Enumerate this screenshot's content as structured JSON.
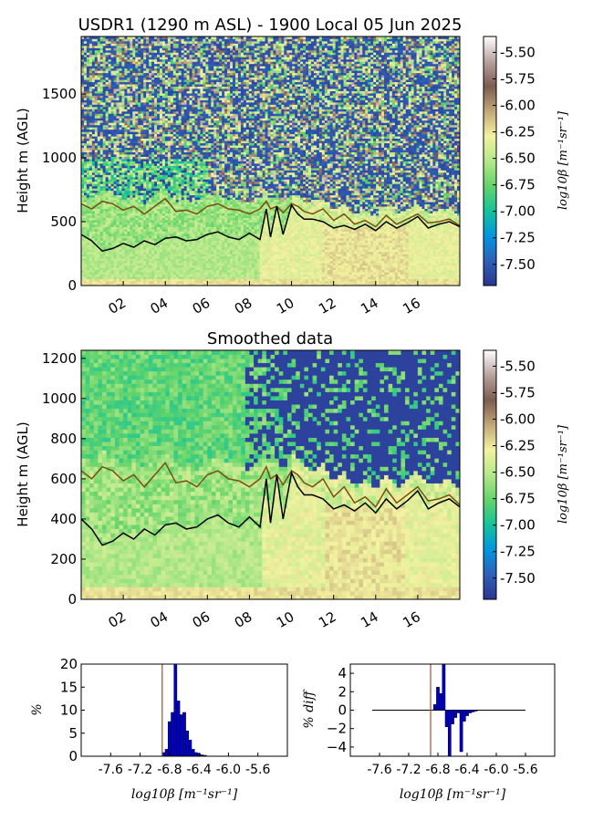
{
  "figure": {
    "title": "USDR1 (1290 m ASL) - 1900 Local 05 Jun 2025",
    "panel2_title": "Smoothed data"
  },
  "colormap": {
    "stops": [
      "#2b3590",
      "#2d61b8",
      "#0096e0",
      "#15c39a",
      "#63d46b",
      "#b5e88a",
      "#f3f2a0",
      "#c2a878",
      "#7b5c50",
      "#b8a39f",
      "#ffffff"
    ],
    "pbl_brown": "#7a4e10",
    "pbl_black": "#000000",
    "hist_bar": "#0000cc",
    "ref_line": "#a0522d"
  },
  "chart_data": [
    {
      "type": "heatmap",
      "title": "USDR1 (1290 m ASL) - 1900 Local 05 Jun 2025",
      "ylabel": "Height m (AGL)",
      "ylim": [
        0,
        1950
      ],
      "yticks": [
        "0",
        "500",
        "1000",
        "1500"
      ],
      "xlim": [
        0,
        18
      ],
      "xticks": [
        "02",
        "04",
        "06",
        "08",
        "10",
        "12",
        "14",
        "16"
      ],
      "colorbar": {
        "label": "log10β [m⁻¹sr⁻¹]",
        "range": [
          -7.7,
          -5.35
        ],
        "ticks": [
          "-5.50",
          "-5.75",
          "-6.00",
          "-6.25",
          "-6.50",
          "-6.75",
          "-7.00",
          "-7.25",
          "-7.50"
        ]
      },
      "series": [
        {
          "name": "",
          "x": [
            0.0,
            0.5,
            1.0,
            1.5,
            2.0,
            2.5,
            3.0,
            3.5,
            4.0,
            4.5,
            5.0,
            5.5,
            6.0,
            6.5,
            7.0,
            7.5,
            8.0,
            8.5,
            8.8,
            9.0,
            9.3,
            9.6,
            10.0,
            10.3,
            10.6,
            11.0,
            11.5,
            12.0,
            12.5,
            13.0,
            13.5,
            14.0,
            14.5,
            15.0,
            15.5,
            16.0,
            16.5,
            17.0,
            17.5,
            18.0
          ],
          "y": [
            640,
            600,
            660,
            640,
            590,
            620,
            560,
            620,
            680,
            580,
            590,
            560,
            620,
            640,
            600,
            590,
            560,
            600,
            660,
            600,
            620,
            570,
            640,
            620,
            580,
            560,
            600,
            510,
            560,
            480,
            510,
            460,
            550,
            480,
            520,
            560,
            490,
            500,
            520,
            470
          ]
        },
        {
          "name": "",
          "x": [
            0.0,
            0.5,
            1.0,
            1.5,
            2.0,
            2.5,
            3.0,
            3.5,
            4.0,
            4.5,
            5.0,
            5.5,
            6.0,
            6.5,
            7.0,
            7.5,
            8.0,
            8.5,
            8.8,
            9.0,
            9.3,
            9.6,
            10.0,
            10.3,
            10.6,
            11.0,
            11.5,
            12.0,
            12.5,
            13.0,
            13.5,
            14.0,
            14.5,
            15.0,
            15.5,
            16.0,
            16.5,
            17.0,
            17.5,
            18.0
          ],
          "y": [
            400,
            350,
            270,
            290,
            330,
            300,
            350,
            320,
            370,
            380,
            350,
            360,
            400,
            420,
            380,
            360,
            410,
            360,
            600,
            380,
            620,
            400,
            630,
            560,
            520,
            520,
            500,
            450,
            470,
            440,
            480,
            430,
            500,
            450,
            490,
            540,
            450,
            480,
            500,
            460
          ]
        }
      ]
    },
    {
      "type": "heatmap",
      "title": "Smoothed data",
      "ylabel": "Height m (AGL)",
      "ylim": [
        0,
        1240
      ],
      "yticks": [
        "0",
        "200",
        "400",
        "600",
        "800",
        "1000",
        "1200"
      ],
      "xlim": [
        0,
        18
      ],
      "xticks": [
        "02",
        "04",
        "06",
        "08",
        "10",
        "12",
        "14",
        "16"
      ],
      "colorbar": {
        "label": "log10β [m⁻¹sr⁻¹]",
        "range": [
          -7.7,
          -5.35
        ],
        "ticks": [
          "-5.50",
          "-5.75",
          "-6.00",
          "-6.25",
          "-6.50",
          "-6.75",
          "-7.00",
          "-7.25",
          "-7.50"
        ]
      },
      "series": [
        {
          "name": "",
          "x": [
            0.0,
            0.5,
            1.0,
            1.5,
            2.0,
            2.5,
            3.0,
            3.5,
            4.0,
            4.5,
            5.0,
            5.5,
            6.0,
            6.5,
            7.0,
            7.5,
            8.0,
            8.5,
            8.8,
            9.0,
            9.3,
            9.6,
            10.0,
            10.3,
            10.6,
            11.0,
            11.5,
            12.0,
            12.5,
            13.0,
            13.5,
            14.0,
            14.5,
            15.0,
            15.5,
            16.0,
            16.5,
            17.0,
            17.5,
            18.0
          ],
          "y": [
            640,
            600,
            660,
            640,
            590,
            620,
            560,
            620,
            680,
            580,
            590,
            560,
            620,
            640,
            600,
            590,
            560,
            600,
            660,
            600,
            620,
            570,
            640,
            620,
            580,
            560,
            600,
            510,
            560,
            480,
            510,
            460,
            550,
            480,
            520,
            560,
            490,
            500,
            520,
            470
          ]
        },
        {
          "name": "",
          "x": [
            0.0,
            0.5,
            1.0,
            1.5,
            2.0,
            2.5,
            3.0,
            3.5,
            4.0,
            4.5,
            5.0,
            5.5,
            6.0,
            6.5,
            7.0,
            7.5,
            8.0,
            8.5,
            8.8,
            9.0,
            9.3,
            9.6,
            10.0,
            10.3,
            10.6,
            11.0,
            11.5,
            12.0,
            12.5,
            13.0,
            13.5,
            14.0,
            14.5,
            15.0,
            15.5,
            16.0,
            16.5,
            17.0,
            17.5,
            18.0
          ],
          "y": [
            400,
            350,
            270,
            290,
            330,
            300,
            350,
            320,
            370,
            380,
            350,
            360,
            400,
            420,
            380,
            360,
            410,
            360,
            600,
            380,
            620,
            400,
            630,
            560,
            520,
            520,
            500,
            450,
            470,
            440,
            480,
            430,
            500,
            450,
            490,
            540,
            450,
            480,
            500,
            460
          ]
        }
      ]
    },
    {
      "type": "bar",
      "xlabel": "log10β [m⁻¹sr⁻¹]",
      "ylabel": "%",
      "ylim": [
        0,
        20
      ],
      "yticks": [
        "0",
        "5",
        "10",
        "15",
        "20"
      ],
      "xlim": [
        -8.0,
        -5.2
      ],
      "xticks": [
        "-7.6",
        "-7.2",
        "-6.8",
        "-6.4",
        "-6.0",
        "-5.6"
      ],
      "ref_line_x": -6.9,
      "bin_width": 0.04,
      "x": [
        -6.88,
        -6.84,
        -6.8,
        -6.76,
        -6.72,
        -6.68,
        -6.64,
        -6.6,
        -6.56,
        -6.52,
        -6.48,
        -6.44,
        -6.4,
        -6.36,
        -6.32
      ],
      "values": [
        0.8,
        1.5,
        7.5,
        9.5,
        20.0,
        12.0,
        9.0,
        9.5,
        5.5,
        3.5,
        1.5,
        0.8,
        0.6,
        0.3,
        0.2
      ]
    },
    {
      "type": "bar",
      "xlabel": "log10β [m⁻¹sr⁻¹]",
      "ylabel": "% diff",
      "ylim": [
        -5,
        5
      ],
      "yticks": [
        "−4",
        "−2",
        "0",
        "2",
        "4"
      ],
      "xlim": [
        -8.0,
        -5.2
      ],
      "xticks": [
        "-7.6",
        "-7.2",
        "-6.8",
        "-6.4",
        "-6.0",
        "-5.6"
      ],
      "ref_line_x": -6.9,
      "bin_width": 0.04,
      "zero_line_range": [
        -7.7,
        -5.6
      ],
      "x": [
        -6.84,
        -6.8,
        -6.76,
        -6.72,
        -6.68,
        -6.64,
        -6.6,
        -6.56,
        -6.52,
        -6.48,
        -6.44,
        -6.4,
        -6.36,
        -6.32,
        -6.28
      ],
      "values": [
        0.6,
        2.5,
        1.8,
        5.0,
        -1.8,
        -5.0,
        -1.5,
        -0.8,
        -0.3,
        -4.5,
        -1.2,
        -0.6,
        -0.3,
        -0.2,
        -0.1
      ]
    }
  ]
}
